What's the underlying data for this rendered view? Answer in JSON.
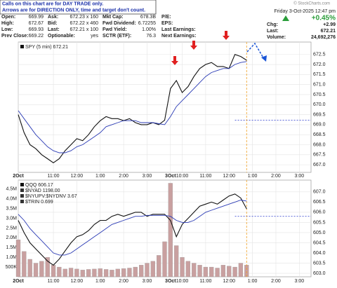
{
  "header": {
    "notes": [
      "Calls on this chart are for DAY TRADE only.",
      "Arrows are for DIRECTION ONLY, time and target don't count."
    ],
    "rows": [
      [
        "Open:",
        "669.99",
        "Ask:",
        "672.23 x 160",
        "Mkt Cap:",
        "678.3B",
        "P/E:"
      ],
      [
        "High:",
        "672.67",
        "Bid:",
        "672.22 x 460",
        "Fwd Dividend:",
        "6.72255",
        "EPS:"
      ],
      [
        "Low:",
        "669.93",
        "Last:",
        "672.21 x 100",
        "Fwd Yield:",
        "1.00%",
        "Last Earnings:"
      ],
      [
        "Prev Close:",
        "669.22",
        "Optionable:",
        "yes",
        "SCTR (ETF):",
        "76.3",
        "Next Earnings:"
      ]
    ],
    "date": "Friday 3-Oct-2025 12:47 pm",
    "change_pct": "+0.45%",
    "right_rows": [
      [
        "Chg:",
        "+2.99"
      ],
      [
        "Last:",
        "672.21"
      ],
      [
        "Volume:",
        "24,692,276"
      ]
    ],
    "copyright": "© StockCharts.com"
  },
  "chart_data": [
    {
      "type": "line",
      "x": [
        0,
        3,
        6,
        9,
        12,
        15,
        18,
        21,
        24,
        27,
        30,
        33,
        36,
        39,
        42,
        45,
        48,
        51,
        54,
        57,
        60,
        63,
        66,
        69,
        72,
        75,
        78,
        81,
        84,
        87,
        90,
        93,
        96,
        99,
        102,
        105,
        108,
        111,
        114,
        117
      ],
      "series": [
        {
          "name": "SPY (5 min) 672.21",
          "color": "#111111",
          "values": [
            669.5,
            668.6,
            668.0,
            667.8,
            667.5,
            667.3,
            667.1,
            667.3,
            667.7,
            668.0,
            668.3,
            668.2,
            668.5,
            668.9,
            669.2,
            669.4,
            669.3,
            669.3,
            669.2,
            669.3,
            669.1,
            669.0,
            669.0,
            669.1,
            669.0,
            669.22,
            670.8,
            671.2,
            670.6,
            670.9,
            671.4,
            671.8,
            672.0,
            672.1,
            671.9,
            671.9,
            671.8,
            672.5,
            672.4,
            672.21
          ]
        },
        {
          "color": "#2b3bb5",
          "values": [
            669.7,
            669.3,
            668.9,
            668.5,
            668.2,
            667.9,
            667.7,
            667.6,
            667.6,
            667.7,
            667.9,
            668.0,
            668.2,
            668.4,
            668.6,
            668.9,
            669.0,
            669.1,
            669.2,
            669.2,
            669.2,
            669.1,
            669.1,
            669.1,
            669.05,
            669.0,
            669.4,
            669.9,
            670.2,
            670.5,
            670.8,
            671.1,
            671.4,
            671.6,
            671.7,
            671.8,
            671.8,
            672.0,
            672.1,
            672.15
          ]
        }
      ],
      "reference_y": 669.22,
      "xlim": [
        0,
        150
      ],
      "xticks": [
        {
          "value": 0,
          "label": "2Oct"
        },
        {
          "value": 18,
          "label": "11:00"
        },
        {
          "value": 30,
          "label": "12:00"
        },
        {
          "value": 42,
          "label": "1:00"
        },
        {
          "value": 54,
          "label": "2:00"
        },
        {
          "value": 66,
          "label": "3:00"
        },
        {
          "value": 78,
          "label": "3Oct"
        },
        {
          "value": 84,
          "label": "10:00"
        },
        {
          "value": 96,
          "label": "11:00"
        },
        {
          "value": 108,
          "label": "12:00"
        },
        {
          "value": 120,
          "label": "1:00"
        },
        {
          "value": 132,
          "label": "2:00"
        },
        {
          "value": 144,
          "label": "3:00"
        }
      ],
      "ylim": [
        666.62,
        673.12
      ],
      "yticks": [
        672.5,
        {
          "value": 672,
          "label": "672.0"
        },
        671.5,
        {
          "value": 671,
          "label": "671.0"
        },
        670.5,
        {
          "value": 670,
          "label": "670.0"
        },
        669.5,
        {
          "value": 669,
          "label": "669.0"
        },
        668.5,
        {
          "value": 668,
          "label": "668.0"
        },
        667.5,
        {
          "value": 667,
          "label": "667.0"
        }
      ],
      "grid": true
    },
    {
      "type": "line",
      "x": [
        0,
        3,
        6,
        9,
        12,
        15,
        18,
        21,
        24,
        27,
        30,
        33,
        36,
        39,
        42,
        45,
        48,
        51,
        54,
        57,
        60,
        63,
        66,
        69,
        72,
        75,
        78,
        81,
        84,
        87,
        90,
        93,
        96,
        99,
        102,
        105,
        108,
        111,
        114,
        117
      ],
      "series": [
        {
          "name": "QQQ 606.17",
          "color": "#111111",
          "values": [
            605.6,
            605.0,
            604.5,
            604.2,
            603.9,
            603.6,
            603.4,
            603.7,
            604.1,
            604.5,
            604.8,
            604.9,
            605.1,
            605.4,
            605.6,
            605.6,
            605.8,
            605.9,
            605.8,
            605.9,
            606.0,
            606.0,
            605.8,
            605.9,
            605.9,
            605.9,
            605.6,
            604.8,
            605.4,
            605.7,
            606.0,
            606.3,
            606.4,
            606.5,
            606.4,
            606.6,
            606.8,
            606.9,
            606.7,
            606.17
          ]
        },
        {
          "color": "#2b3bb5",
          "values": [
            605.9,
            605.6,
            605.2,
            604.9,
            604.6,
            604.3,
            604.0,
            603.9,
            603.9,
            604.0,
            604.2,
            604.4,
            604.6,
            604.8,
            605.0,
            605.2,
            605.4,
            605.5,
            605.6,
            605.7,
            605.8,
            605.8,
            605.85,
            605.85,
            605.85,
            605.85,
            605.8,
            605.6,
            605.5,
            605.5,
            605.6,
            605.8,
            606.0,
            606.1,
            606.2,
            606.3,
            606.4,
            606.5,
            606.6,
            606.55
          ]
        }
      ],
      "legend_extra": [
        "$NYAD 1198.00",
        "$NYUPV:$NYDNV 3.67",
        "$TRIN 0.699"
      ],
      "reference_y": 605.8,
      "volume": {
        "color": "#c9a0a0",
        "values": [
          1900000,
          1300000,
          900000,
          700000,
          800000,
          1000000,
          600000,
          500000,
          400000,
          450000,
          400000,
          350000,
          380000,
          400000,
          420000,
          380000,
          350000,
          400000,
          420000,
          450000,
          500000,
          600000,
          700000,
          800000,
          1100000,
          1800000,
          4800000,
          1600000,
          1000000,
          800000,
          700000,
          600000,
          500000,
          500000,
          450000,
          600000,
          550000,
          500000,
          700000,
          600000
        ],
        "ylim": [
          0,
          4960000
        ],
        "yticks": [
          {
            "value": 4500000,
            "label": "4.5M"
          },
          {
            "value": 4000000,
            "label": "4.0M"
          },
          {
            "value": 3500000,
            "label": "3.5M"
          },
          {
            "value": 3000000,
            "label": "3.0M"
          },
          {
            "value": 2500000,
            "label": "2.5M"
          },
          {
            "value": 2000000,
            "label": "2.0M"
          },
          {
            "value": 1500000,
            "label": "1.5M"
          },
          {
            "value": 1000000,
            "label": "1.0M"
          },
          {
            "value": 500000,
            "label": "500K"
          }
        ]
      },
      "xlim": [
        0,
        150
      ],
      "xticks": [
        {
          "value": 0,
          "label": "2Oct"
        },
        {
          "value": 18,
          "label": "11:00"
        },
        {
          "value": 30,
          "label": "12:00"
        },
        {
          "value": 42,
          "label": "1:00"
        },
        {
          "value": 54,
          "label": "2:00"
        },
        {
          "value": 66,
          "label": "3:00"
        },
        {
          "value": 78,
          "label": "3Oct"
        },
        {
          "value": 84,
          "label": "10:00"
        },
        {
          "value": 96,
          "label": "11:00"
        },
        {
          "value": 108,
          "label": "12:00"
        },
        {
          "value": 120,
          "label": "1:00"
        },
        {
          "value": 132,
          "label": "2:00"
        },
        {
          "value": 144,
          "label": "3:00"
        }
      ],
      "ylim": [
        602.83,
        607.58
      ],
      "yticks": [
        {
          "value": 607,
          "label": "607.0"
        },
        606.5,
        {
          "value": 606,
          "label": "606.0"
        },
        605.5,
        {
          "value": 605,
          "label": "605.0"
        },
        604.5,
        {
          "value": 604,
          "label": "604.0"
        },
        603.5,
        {
          "value": 603,
          "label": "603.0"
        }
      ],
      "grid": true
    }
  ]
}
